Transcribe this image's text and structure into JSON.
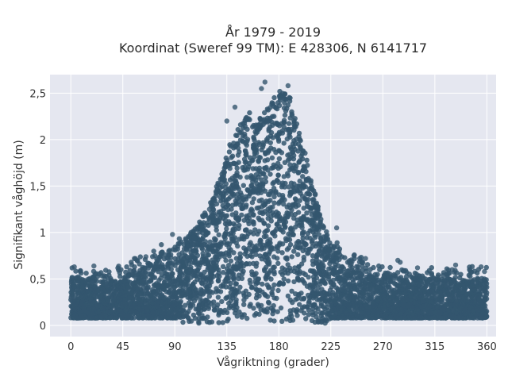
{
  "chart_data": {
    "type": "scatter",
    "title_line1": "År 1979 - 2019",
    "title_line2": "Koordinat (Sweref 99 TM): E 428306, N 6141717",
    "xlabel": "Vågriktning (grader)",
    "ylabel": "Signifikant våghöjd (m)",
    "xlim": [
      -18,
      368
    ],
    "ylim": [
      -0.12,
      2.7
    ],
    "xticks": [
      0,
      45,
      90,
      135,
      180,
      225,
      270,
      315,
      360
    ],
    "xtick_labels": [
      "0",
      "45",
      "90",
      "135",
      "180",
      "225",
      "270",
      "315",
      "360"
    ],
    "yticks": [
      0,
      0.5,
      1,
      1.5,
      2,
      2.5
    ],
    "ytick_labels": [
      "0",
      "0,5",
      "1",
      "1,5",
      "2",
      "2,5"
    ],
    "grid": true,
    "marker_color": "#34566e",
    "background_color": "#e5e7f0",
    "envelope": {
      "x": [
        0,
        10,
        30,
        50,
        70,
        90,
        100,
        110,
        120,
        130,
        135,
        140,
        150,
        155,
        160,
        170,
        180,
        185,
        190,
        195,
        200,
        205,
        210,
        215,
        220,
        225,
        230,
        240,
        250,
        260,
        270,
        290,
        310,
        330,
        350,
        360
      ],
      "ymax": [
        0.55,
        0.48,
        0.5,
        0.55,
        0.7,
        0.85,
        0.95,
        1.1,
        1.3,
        1.65,
        1.85,
        2.05,
        2.25,
        2.3,
        2.2,
        2.35,
        2.55,
        2.5,
        2.45,
        2.25,
        2.0,
        1.75,
        1.5,
        1.25,
        1.05,
        0.9,
        0.8,
        0.7,
        0.62,
        0.55,
        0.55,
        0.52,
        0.5,
        0.5,
        0.52,
        0.5
      ]
    },
    "outliers": [
      {
        "x": 3,
        "y": 0.63
      },
      {
        "x": 20,
        "y": 0.64
      },
      {
        "x": 55,
        "y": 0.72
      },
      {
        "x": 65,
        "y": 0.74
      },
      {
        "x": 78,
        "y": 0.78
      },
      {
        "x": 88,
        "y": 0.98
      },
      {
        "x": 120,
        "y": 1.25
      },
      {
        "x": 135,
        "y": 2.2
      },
      {
        "x": 142,
        "y": 2.35
      },
      {
        "x": 165,
        "y": 2.55
      },
      {
        "x": 168,
        "y": 2.62
      },
      {
        "x": 188,
        "y": 2.58
      },
      {
        "x": 230,
        "y": 1.05
      },
      {
        "x": 245,
        "y": 0.75
      },
      {
        "x": 255,
        "y": 0.72
      },
      {
        "x": 283,
        "y": 0.7
      },
      {
        "x": 285,
        "y": 0.68
      },
      {
        "x": 300,
        "y": 0.62
      },
      {
        "x": 330,
        "y": 0.6
      },
      {
        "x": 333,
        "y": 0.65
      },
      {
        "x": 345,
        "y": 0.6
      },
      {
        "x": 355,
        "y": 0.63
      },
      {
        "x": 358,
        "y": 0.58
      }
    ]
  }
}
